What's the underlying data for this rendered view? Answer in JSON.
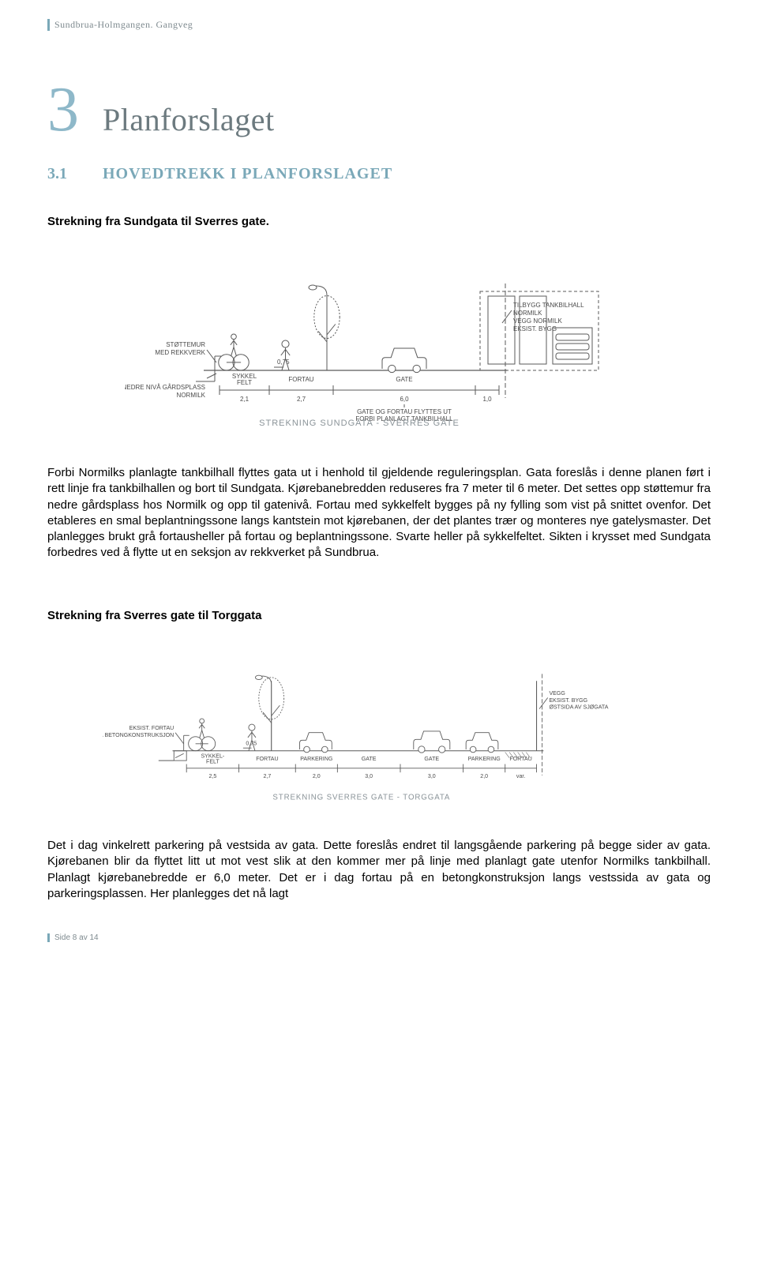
{
  "header": {
    "text": "Sundbrua-Holmgangen. Gangveg"
  },
  "chapter": {
    "num": "3",
    "title": "Planforslaget",
    "num_color": "#8eb8c9",
    "title_color": "#6c7a7f",
    "num_fontsize": 80,
    "title_fontsize": 40
  },
  "section": {
    "num": "3.1",
    "title": "HOVEDTREKK I PLANFORSLAGET",
    "color": "#7aa8b8",
    "fontsize": 20
  },
  "sub1": "Strekning fra Sundgata til Sverres gate.",
  "figure1": {
    "type": "cross-section-diagram",
    "caption": "STREKNING SUNDGATA - SVERRES GATE",
    "caption_color": "#8a9398",
    "caption_fontsize": 11,
    "stroke_color": "#5a5a5a",
    "text_color": "#4a4a4a",
    "label_fontsize": 8,
    "left_labels": [
      "STØTTEMUR",
      "MED REKKVERK",
      "NEDRE NIVÅ GÅRDSPLASS",
      "NORMILK"
    ],
    "right_labels": [
      "TILBYGG TANKBILHALL",
      "NORMILK",
      "VEGG NORMILK",
      "EKSIST. BYGG"
    ],
    "bottom_labels": [
      "GATE OG FORTAU FLYTTES UT",
      "FORBI PLANLAGT TANKBILHALL"
    ],
    "segments": [
      {
        "label": "SYKKEL\nFELT",
        "width": 2.1,
        "dim": "2,1"
      },
      {
        "label": "FORTAU",
        "width": 2.7,
        "dim": "2,7",
        "annot": "0,75"
      },
      {
        "label": "GATE",
        "width": 6.0,
        "dim": "6,0"
      },
      {
        "label": "",
        "width": 1.0,
        "dim": "1,0"
      }
    ]
  },
  "para1": "Forbi Normilks planlagte tankbilhall flyttes gata ut i henhold til gjeldende reguleringsplan. Gata foreslås i denne planen ført i rett linje fra tankbilhallen og bort til Sundgata. Kjørebanebredden reduseres fra 7 meter til 6 meter. Det settes opp støttemur fra nedre gårdsplass hos Normilk og opp til gatenivå. Fortau med sykkelfelt bygges på ny fylling som vist på snittet ovenfor. Det etableres en smal beplantningssone langs kantstein mot kjørebanen, der det plantes trær og monteres nye gatelysmaster. Det planlegges brukt grå fortausheller på fortau og beplantningssone. Svarte heller på sykkelfeltet. Sikten i krysset med Sundgata forbedres ved å flytte ut en seksjon av rekkverket på Sundbrua.",
  "sub2": "Strekning fra Sverres gate til Torggata",
  "figure2": {
    "type": "cross-section-diagram",
    "caption": "STREKNING SVERRES GATE - TORGGATA",
    "caption_color": "#8a9398",
    "caption_fontsize": 11,
    "stroke_color": "#5a5a5a",
    "text_color": "#4a4a4a",
    "label_fontsize": 8,
    "left_labels": [
      "EKSIST. FORTAU",
      "PÅ BETONGKONSTRUKSJON"
    ],
    "right_labels": [
      "VEGG",
      "EKSIST. BYGG",
      "ØSTSIDA AV SJØGATA"
    ],
    "segments": [
      {
        "label": "SYKKEL-\nFELT",
        "width": 2.5,
        "dim": "2,5"
      },
      {
        "label": "FORTAU",
        "width": 2.7,
        "dim": "2,7",
        "annot": "0,75"
      },
      {
        "label": "PARKERING",
        "width": 2.0,
        "dim": "2,0"
      },
      {
        "label": "GATE",
        "width": 3.0,
        "dim": "3,0"
      },
      {
        "label": "GATE",
        "width": 3.0,
        "dim": "3,0"
      },
      {
        "label": "PARKERING",
        "width": 2.0,
        "dim": "2,0"
      },
      {
        "label": "FORTAU",
        "width": 1.5,
        "dim": "var."
      }
    ]
  },
  "para2": "Det i dag vinkelrett parkering på vestsida av gata. Dette foreslås endret til langsgående parkering på begge sider av gata. Kjørebanen blir da flyttet litt ut mot vest slik at den kommer mer på linje med planlagt gate utenfor Normilks tankbilhall. Planlagt kjørebanebredde er 6,0 meter. Det er i dag fortau på en betongkonstruksjon langs vestssida av gata og parkeringsplassen. Her planlegges det nå lagt",
  "footer": {
    "text": "Side 8 av 14"
  }
}
